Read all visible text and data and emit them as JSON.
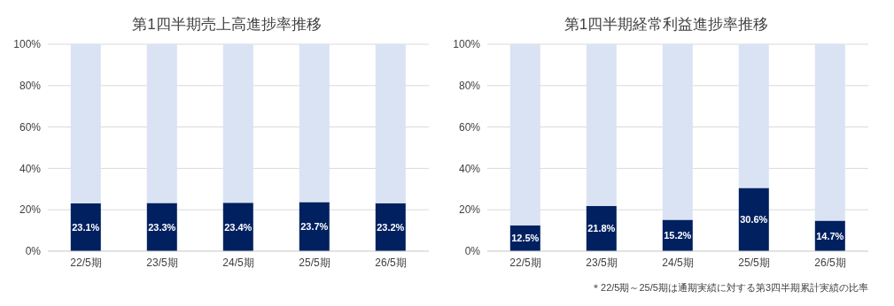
{
  "chart_data": [
    {
      "type": "bar",
      "title": "第1四半期売上高進捗率推移",
      "categories": [
        "22/5期",
        "23/5期",
        "24/5期",
        "25/5期",
        "26/5期"
      ],
      "stacked": true,
      "series": [
        {
          "color": "#002060",
          "values": [
            23.1,
            23.3,
            23.4,
            23.7,
            23.2
          ],
          "value_labels": [
            "23.1%",
            "23.3%",
            "23.4%",
            "23.7%",
            "23.2%"
          ]
        },
        {
          "color": "#dae3f3",
          "values": [
            76.9,
            76.7,
            76.6,
            76.3,
            76.8
          ]
        }
      ],
      "ylim": [
        0,
        100
      ],
      "yticks": [
        {
          "value": 0,
          "label": "0%"
        },
        {
          "value": 20,
          "label": "20%"
        },
        {
          "value": 40,
          "label": "40%"
        },
        {
          "value": 60,
          "label": "60%"
        },
        {
          "value": 80,
          "label": "80%"
        },
        {
          "value": 100,
          "label": "100%"
        }
      ],
      "grid": "y",
      "legend": false
    },
    {
      "type": "bar",
      "title": "第1四半期経常利益進捗率推移",
      "categories": [
        "22/5期",
        "23/5期",
        "24/5期",
        "25/5期",
        "26/5期"
      ],
      "stacked": true,
      "series": [
        {
          "color": "#002060",
          "values": [
            12.5,
            21.8,
            15.2,
            30.6,
            14.7
          ],
          "value_labels": [
            "12.5%",
            "21.8%",
            "15.2%",
            "30.6%",
            "14.7%"
          ]
        },
        {
          "color": "#dae3f3",
          "values": [
            87.5,
            78.2,
            84.8,
            69.4,
            85.3
          ]
        }
      ],
      "ylim": [
        0,
        100
      ],
      "yticks": [
        {
          "value": 0,
          "label": "0%"
        },
        {
          "value": 20,
          "label": "20%"
        },
        {
          "value": 40,
          "label": "40%"
        },
        {
          "value": 60,
          "label": "60%"
        },
        {
          "value": 80,
          "label": "80%"
        },
        {
          "value": 100,
          "label": "100%"
        }
      ],
      "grid": "y",
      "legend": false,
      "annotations": [
        "＊22/5期～25/5期は通期実績に対する第3四半期累計実績の比率"
      ]
    }
  ]
}
